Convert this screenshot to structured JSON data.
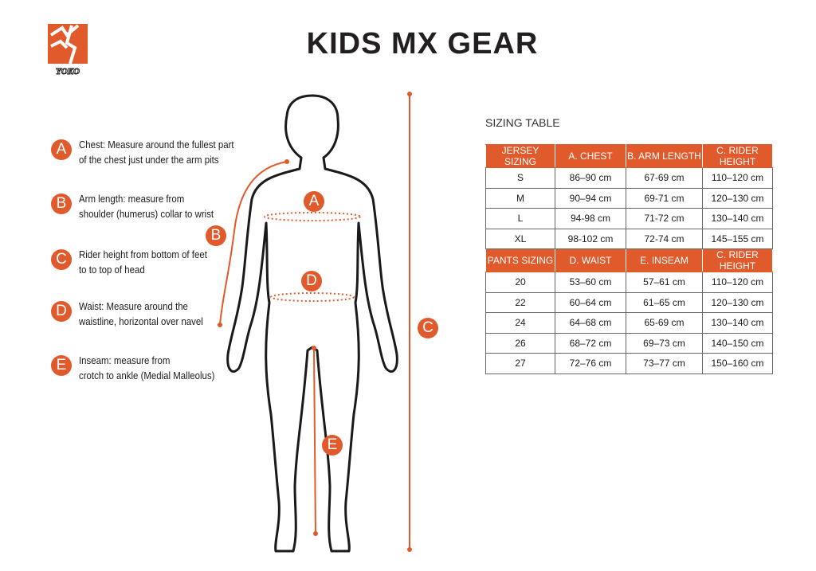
{
  "brand": {
    "name": "YOKO",
    "color": "#e05a2b"
  },
  "title": "KIDS MX GEAR",
  "legend": [
    {
      "letter": "A",
      "line1": "Chest: Measure around  the fullest part",
      "line2": "of the chest just under the arm pits"
    },
    {
      "letter": "B",
      "line1": "Arm length: measure from",
      "line2": "shoulder (humerus) collar to wrist"
    },
    {
      "letter": "C",
      "line1": "Rider height from bottom of feet",
      "line2": "to to top of head"
    },
    {
      "letter": "D",
      "line1": "Waist: Measure around the",
      "line2": "waistline, horizontal over navel"
    },
    {
      "letter": "E",
      "line1": "Inseam: measure from",
      "line2": "crotch to ankle (Medial Malleolus)"
    }
  ],
  "figure_labels": {
    "a": "A",
    "b": "B",
    "c": "C",
    "d": "D",
    "e": "E"
  },
  "sizing": {
    "label": "SIZING TABLE",
    "jersey_header": [
      "JERSEY SIZING",
      "A. CHEST",
      "B. ARM LENGTH",
      "C. RIDER HEIGHT"
    ],
    "jersey_rows": [
      [
        "S",
        "86–90 cm",
        "67-69 cm",
        "110–120 cm"
      ],
      [
        "M",
        "90–94 cm",
        "69-71 cm",
        "120–130 cm"
      ],
      [
        "L",
        "94-98 cm",
        "71-72 cm",
        "130–140 cm"
      ],
      [
        "XL",
        "98-102 cm",
        "72-74 cm",
        "145–155 cm"
      ]
    ],
    "pants_header": [
      "PANTS SIZING",
      "D. WAIST",
      "E. INSEAM",
      "C. RIDER HEIGHT"
    ],
    "pants_rows": [
      [
        "20",
        "53–60 cm",
        "57–61 cm",
        "110–120 cm"
      ],
      [
        "22",
        "60–64 cm",
        "61–65 cm",
        "120–130 cm"
      ],
      [
        "24",
        "64–68 cm",
        "65-69 cm",
        "130–140 cm"
      ],
      [
        "26",
        "68–72 cm",
        "69–73 cm",
        "140–150 cm"
      ],
      [
        "27",
        "72–76 cm",
        "73–77 cm",
        "150–160 cm"
      ]
    ]
  }
}
